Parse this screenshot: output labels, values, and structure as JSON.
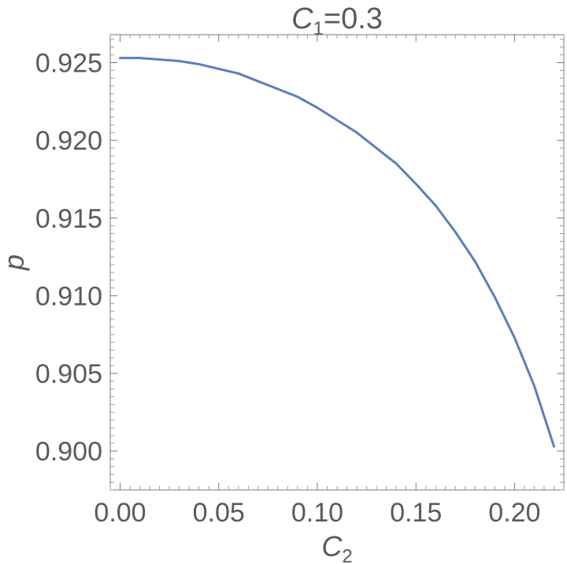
{
  "chart_data": {
    "type": "line",
    "title": {
      "main": "C",
      "sub": "1",
      "rest": "=0.3"
    },
    "xlabel": {
      "main": "C",
      "sub": "2"
    },
    "ylabel": "p",
    "xlim": [
      -0.005,
      0.225
    ],
    "ylim": [
      0.8975,
      0.9268
    ],
    "xticks": [
      0.0,
      0.05,
      0.1,
      0.15,
      0.2
    ],
    "xtick_labels": [
      "0.00",
      "0.05",
      "0.10",
      "0.15",
      "0.20"
    ],
    "yticks": [
      0.9,
      0.905,
      0.91,
      0.915,
      0.92,
      0.925
    ],
    "ytick_labels": [
      "0.900",
      "0.905",
      "0.910",
      "0.915",
      "0.920",
      "0.925"
    ],
    "grid": false,
    "series": [
      {
        "color": "#5b7fb8",
        "x": [
          0.0,
          0.01,
          0.02,
          0.03,
          0.04,
          0.05,
          0.06,
          0.07,
          0.08,
          0.09,
          0.1,
          0.11,
          0.12,
          0.13,
          0.14,
          0.15,
          0.16,
          0.17,
          0.18,
          0.19,
          0.2,
          0.21,
          0.22
        ],
        "y": [
          0.9253,
          0.9253,
          0.9252,
          0.9251,
          0.9249,
          0.9246,
          0.9243,
          0.9238,
          0.9233,
          0.9228,
          0.9221,
          0.9213,
          0.9205,
          0.9195,
          0.9185,
          0.9172,
          0.9158,
          0.9141,
          0.9122,
          0.9099,
          0.9073,
          0.9042,
          0.9003
        ]
      }
    ]
  }
}
